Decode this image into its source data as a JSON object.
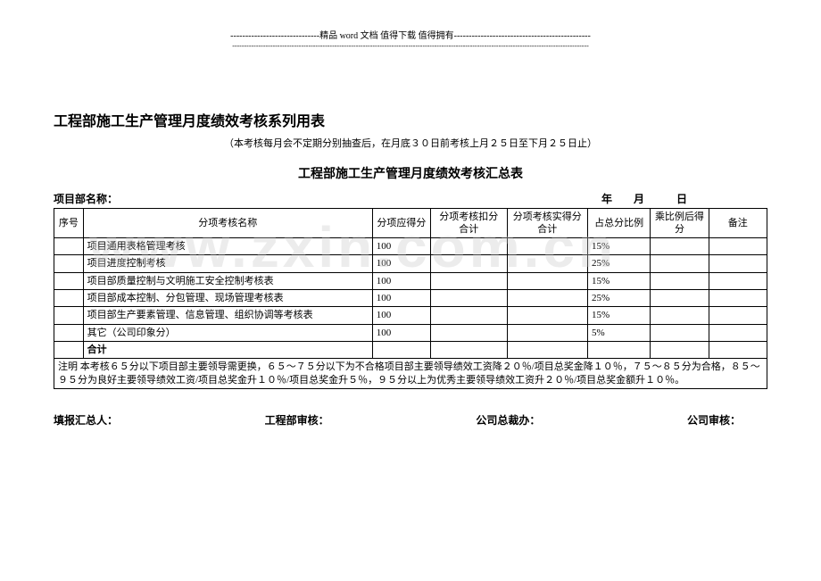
{
  "header": {
    "line1": "------------------------------精品 word 文档  值得下载  值得拥有----------------------------------------------",
    "line2": "------------------------------------------------------------------------------------------------------------------------------------------------------"
  },
  "watermark": "www.zxin.com.cn",
  "main_title": "工程部施工生产管理月度绩效考核系列用表",
  "sub_note": "（本考核每月会不定期分别抽查后，在月底３０日前考核上月２５日至下月２５日止）",
  "table_title": "工程部施工生产管理月度绩效考核汇总表",
  "name_label": "项目部名称：",
  "date_label": "年　　月　　　日",
  "columns": {
    "seq": "序号",
    "name": "分项考核名称",
    "full": "分项应得分",
    "deduct": "分项考核扣分合计",
    "actual": "分项考核实得分合计",
    "pct": "占总分比例",
    "after": "乘比例后得分",
    "remark": "备注"
  },
  "rows": [
    {
      "name": "项目通用表格管理考核",
      "full": "100",
      "pct": "15%"
    },
    {
      "name": "项目进度控制考核",
      "full": "100",
      "pct": "25%"
    },
    {
      "name": "项目部质量控制与文明施工安全控制考核表",
      "full": "100",
      "pct": "15%"
    },
    {
      "name": "项目部成本控制、分包管理、现场管理考核表",
      "full": "100",
      "pct": "25%"
    },
    {
      "name": "项目部生产要素管理、信息管理、组织协调等考核表",
      "full": "100",
      "pct": "15%"
    },
    {
      "name": "其它（公司印象分）",
      "full": "100",
      "pct": "5%"
    }
  ],
  "total_label": "合计",
  "note_text": "注明 本考核６５分以下项目部主要领导需更换，６５～７５分以下为不合格项目部主要领导绩效工资降２０％/项目总奖金降１０％，７５～８５分为合格，８５～９５分为良好主要领导绩效工资/项目总奖金升１０％/项目总奖金升５％，９５分以上为优秀主要领导绩效工资升２０％/项目总奖金额升１０％。",
  "signatures": {
    "a": "填报汇总人：",
    "b": "工程部审核：",
    "c": "公司总裁办：",
    "d": "公司审核："
  }
}
